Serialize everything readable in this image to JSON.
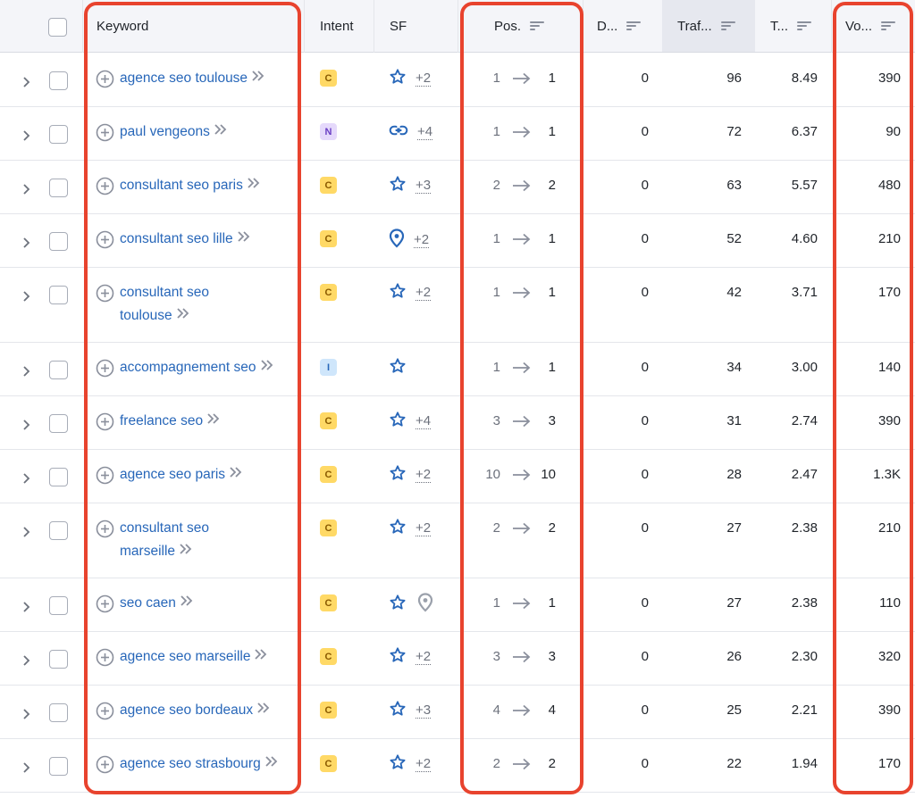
{
  "header": {
    "keyword": "Keyword",
    "intent": "Intent",
    "sf": "SF",
    "position": "Pos.",
    "difficulty": "D...",
    "traffic": "Traf...",
    "traffic_pct": "T...",
    "volume": "Vo..."
  },
  "rows": [
    {
      "kw1": "agence seo toulouse",
      "kw2": "",
      "intent": "C",
      "sf_icon": "star-icon",
      "sf_more": "+2",
      "pos_from": "1",
      "pos_to": "1",
      "diff": "0",
      "traffic": "96",
      "traffic_pct": "8.49",
      "volume": "390"
    },
    {
      "kw1": "paul vengeons",
      "kw2": "",
      "intent": "N",
      "sf_icon": "link-icon",
      "sf_more": "+4",
      "pos_from": "1",
      "pos_to": "1",
      "diff": "0",
      "traffic": "72",
      "traffic_pct": "6.37",
      "volume": "90"
    },
    {
      "kw1": "consultant seo paris",
      "kw2": "",
      "intent": "C",
      "sf_icon": "star-icon",
      "sf_more": "+3",
      "pos_from": "2",
      "pos_to": "2",
      "diff": "0",
      "traffic": "63",
      "traffic_pct": "5.57",
      "volume": "480"
    },
    {
      "kw1": "consultant seo lille",
      "kw2": "",
      "intent": "C",
      "sf_icon": "map-pin-icon",
      "sf_more": "+2",
      "pos_from": "1",
      "pos_to": "1",
      "diff": "0",
      "traffic": "52",
      "traffic_pct": "4.60",
      "volume": "210"
    },
    {
      "kw1": "consultant seo",
      "kw2": "toulouse",
      "intent": "C",
      "sf_icon": "star-icon",
      "sf_more": "+2",
      "pos_from": "1",
      "pos_to": "1",
      "diff": "0",
      "traffic": "42",
      "traffic_pct": "3.71",
      "volume": "170"
    },
    {
      "kw1": "accompagnement seo",
      "kw2": "",
      "intent": "I",
      "sf_icon": "star-icon",
      "sf_more": "",
      "pos_from": "1",
      "pos_to": "1",
      "diff": "0",
      "traffic": "34",
      "traffic_pct": "3.00",
      "volume": "140"
    },
    {
      "kw1": "freelance seo",
      "kw2": "",
      "intent": "C",
      "sf_icon": "star-icon",
      "sf_more": "+4",
      "pos_from": "3",
      "pos_to": "3",
      "diff": "0",
      "traffic": "31",
      "traffic_pct": "2.74",
      "volume": "390"
    },
    {
      "kw1": "agence seo paris",
      "kw2": "",
      "intent": "C",
      "sf_icon": "star-icon",
      "sf_more": "+2",
      "pos_from": "10",
      "pos_to": "10",
      "diff": "0",
      "traffic": "28",
      "traffic_pct": "2.47",
      "volume": "1.3K"
    },
    {
      "kw1": "consultant seo",
      "kw2": "marseille",
      "intent": "C",
      "sf_icon": "star-icon",
      "sf_more": "+2",
      "pos_from": "2",
      "pos_to": "2",
      "diff": "0",
      "traffic": "27",
      "traffic_pct": "2.38",
      "volume": "210"
    },
    {
      "kw1": "seo caen",
      "kw2": "",
      "intent": "C",
      "sf_icon": "star-icon",
      "sf_icon2": "map-pin-gray-icon",
      "sf_more": "",
      "pos_from": "1",
      "pos_to": "1",
      "diff": "0",
      "traffic": "27",
      "traffic_pct": "2.38",
      "volume": "110"
    },
    {
      "kw1": "agence seo marseille",
      "kw2": "",
      "intent": "C",
      "sf_icon": "star-icon",
      "sf_more": "+2",
      "pos_from": "3",
      "pos_to": "3",
      "diff": "0",
      "traffic": "26",
      "traffic_pct": "2.30",
      "volume": "320"
    },
    {
      "kw1": "agence seo bordeaux",
      "kw2": "",
      "intent": "C",
      "sf_icon": "star-icon",
      "sf_more": "+3",
      "pos_from": "4",
      "pos_to": "4",
      "diff": "0",
      "traffic": "25",
      "traffic_pct": "2.21",
      "volume": "390"
    },
    {
      "kw1": "agence seo strasbourg",
      "kw2": "",
      "intent": "C",
      "sf_icon": "star-icon",
      "sf_more": "+2",
      "pos_from": "2",
      "pos_to": "2",
      "diff": "0",
      "traffic": "22",
      "traffic_pct": "1.94",
      "volume": "170"
    }
  ],
  "colors": {
    "link": "#2867b9",
    "highlight": "#e8432e",
    "intent_commercial": "#ffd966",
    "intent_navigational": "#e5d9fb",
    "intent_informational": "#cfe6fb"
  }
}
